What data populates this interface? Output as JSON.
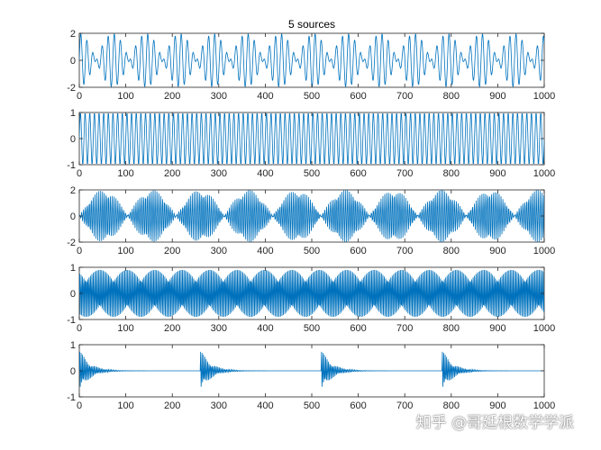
{
  "watermark": "知乎 @哥廷根数学学派",
  "chart_data": [
    {
      "type": "line",
      "title": "5 sources",
      "xlim": [
        0,
        1000
      ],
      "ylim": [
        -2,
        2
      ],
      "xticks": [
        0,
        100,
        200,
        300,
        400,
        500,
        600,
        700,
        800,
        900,
        1000
      ],
      "yticks": [
        -2,
        0,
        2
      ],
      "line_color": "#0072BD",
      "series": [
        {
          "signal": "beating sinusoid (sum of two sines), envelope period ~52 samples, amplitude ~2"
        }
      ]
    },
    {
      "type": "line",
      "title": "",
      "xlim": [
        0,
        1000
      ],
      "ylim": [
        -1,
        1
      ],
      "xticks": [
        0,
        100,
        200,
        300,
        400,
        500,
        600,
        700,
        800,
        900,
        1000
      ],
      "yticks": [
        -1,
        0,
        1
      ],
      "line_color": "#0072BD",
      "series": [
        {
          "signal": "pure sinusoid, ~100 cycles over 1000 samples, amplitude 1"
        }
      ]
    },
    {
      "type": "line",
      "title": "",
      "xlim": [
        0,
        1000
      ],
      "ylim": [
        -2,
        2
      ],
      "xticks": [
        0,
        100,
        200,
        300,
        400,
        500,
        600,
        700,
        800,
        900,
        1000
      ],
      "yticks": [
        -2,
        0,
        2
      ],
      "line_color": "#0072BD",
      "series": [
        {
          "signal": "amplitude-modulated carrier, envelope period ~104 samples, amplitude ~2"
        }
      ]
    },
    {
      "type": "line",
      "title": "",
      "xlim": [
        0,
        1000
      ],
      "ylim": [
        -1,
        1
      ],
      "xticks": [
        0,
        100,
        200,
        300,
        400,
        500,
        600,
        700,
        800,
        900,
        1000
      ],
      "yticks": [
        -1,
        0,
        1
      ],
      "line_color": "#0072BD",
      "series": [
        {
          "signal": "high-frequency oscillation, ~3 samples per cycle, amplitude ~0.9"
        }
      ]
    },
    {
      "type": "line",
      "title": "",
      "xlim": [
        0,
        1000
      ],
      "ylim": [
        -1,
        1
      ],
      "xticks": [
        0,
        100,
        200,
        300,
        400,
        500,
        600,
        700,
        800,
        900,
        1000
      ],
      "yticks": [
        -1,
        0,
        1
      ],
      "line_color": "#0072BD",
      "series": [
        {
          "signal": "decaying impulse bursts at x ≈ 0, 260, 520, 780, peak ~0.8"
        }
      ]
    }
  ]
}
